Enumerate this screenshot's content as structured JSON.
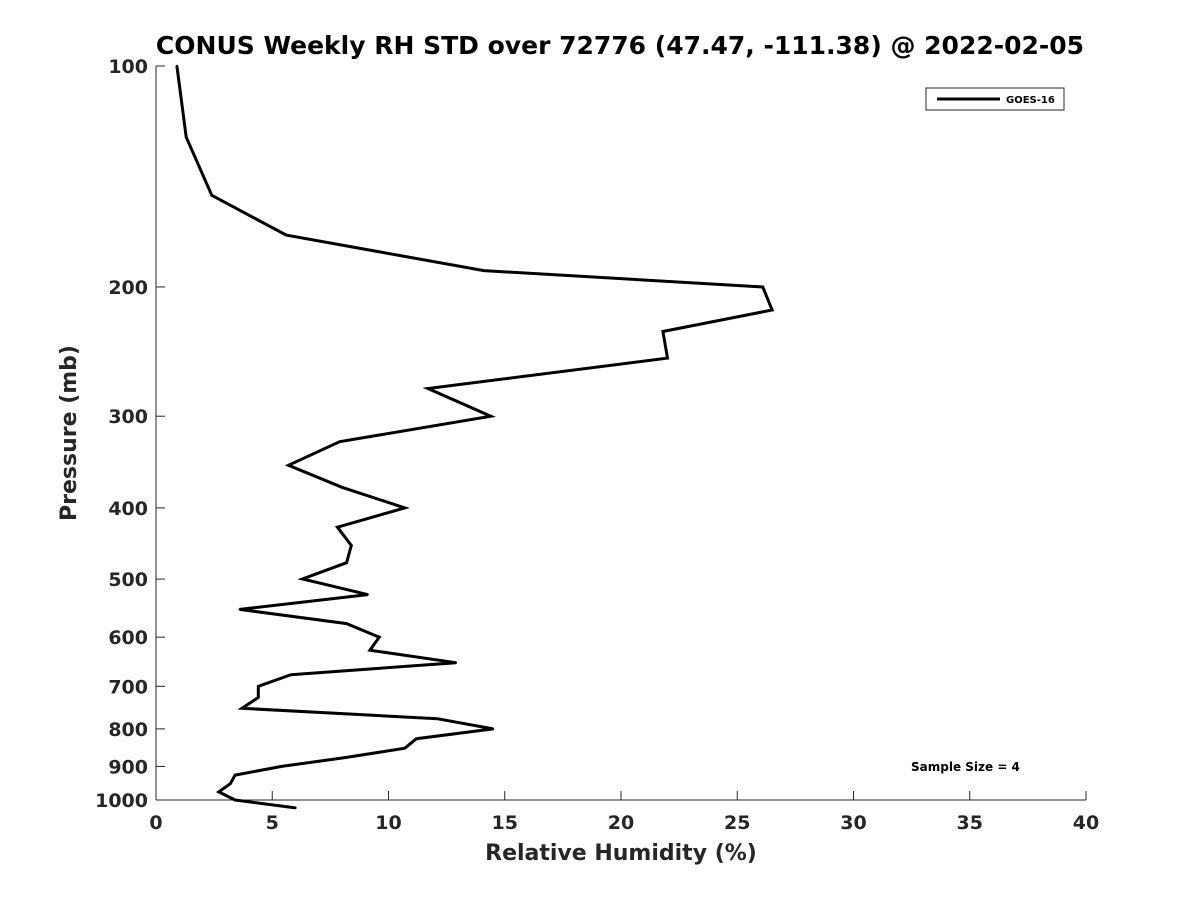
{
  "chart_data": {
    "type": "line",
    "title": "CONUS Weekly RH STD over 72776 (47.47, -111.38) @ 2022-02-05",
    "xlabel": "Relative Humidity (%)",
    "ylabel": "Pressure (mb)",
    "xlim": [
      0,
      40
    ],
    "ylim": [
      100,
      1000
    ],
    "y_scale": "log",
    "y_reversed": true,
    "x_ticks": [
      0,
      5,
      10,
      15,
      20,
      25,
      30,
      35,
      40
    ],
    "x_tick_labels": [
      "0",
      "5",
      "10",
      "15",
      "20",
      "25",
      "30",
      "35",
      "40"
    ],
    "y_ticks": [
      100,
      200,
      300,
      400,
      500,
      600,
      700,
      800,
      900,
      1000
    ],
    "y_tick_labels": [
      "100",
      "200",
      "300",
      "400",
      "500",
      "600",
      "700",
      "800",
      "900",
      "1000"
    ],
    "grid": false,
    "legend_position": "top-right",
    "line_color": "#000000",
    "series": [
      {
        "name": "GOES-16",
        "points": [
          {
            "x": 0.9,
            "y": 100
          },
          {
            "x": 1.3,
            "y": 125
          },
          {
            "x": 2.4,
            "y": 150
          },
          {
            "x": 5.6,
            "y": 170
          },
          {
            "x": 14.1,
            "y": 190
          },
          {
            "x": 26.1,
            "y": 200
          },
          {
            "x": 26.5,
            "y": 215
          },
          {
            "x": 21.8,
            "y": 230
          },
          {
            "x": 22.0,
            "y": 250
          },
          {
            "x": 11.7,
            "y": 275
          },
          {
            "x": 14.4,
            "y": 300
          },
          {
            "x": 7.9,
            "y": 325
          },
          {
            "x": 5.7,
            "y": 350
          },
          {
            "x": 8.0,
            "y": 375
          },
          {
            "x": 10.7,
            "y": 400
          },
          {
            "x": 7.8,
            "y": 425
          },
          {
            "x": 8.4,
            "y": 450
          },
          {
            "x": 8.2,
            "y": 475
          },
          {
            "x": 6.3,
            "y": 500
          },
          {
            "x": 9.1,
            "y": 525
          },
          {
            "x": 3.6,
            "y": 550
          },
          {
            "x": 8.2,
            "y": 575
          },
          {
            "x": 9.6,
            "y": 600
          },
          {
            "x": 9.2,
            "y": 625
          },
          {
            "x": 12.9,
            "y": 650
          },
          {
            "x": 5.8,
            "y": 675
          },
          {
            "x": 4.4,
            "y": 700
          },
          {
            "x": 4.4,
            "y": 725
          },
          {
            "x": 3.7,
            "y": 750
          },
          {
            "x": 12.1,
            "y": 775
          },
          {
            "x": 14.5,
            "y": 800
          },
          {
            "x": 11.2,
            "y": 825
          },
          {
            "x": 10.7,
            "y": 850
          },
          {
            "x": 8.2,
            "y": 875
          },
          {
            "x": 5.4,
            "y": 900
          },
          {
            "x": 3.4,
            "y": 925
          },
          {
            "x": 3.2,
            "y": 950
          },
          {
            "x": 2.7,
            "y": 975
          },
          {
            "x": 3.4,
            "y": 1000
          },
          {
            "x": 6.0,
            "y": 1025
          }
        ]
      }
    ],
    "annotations": [
      {
        "text": "Sample Size = 4",
        "position": "bottom-right"
      }
    ]
  }
}
